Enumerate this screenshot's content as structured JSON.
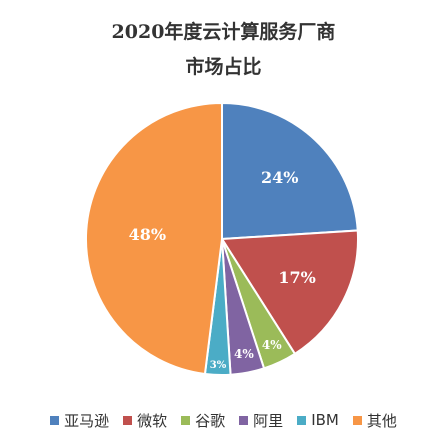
{
  "chart_data": {
    "type": "pie",
    "title_lines": [
      "2020年度云计算服务厂商",
      "市场占比"
    ],
    "categories": [
      "亚马逊",
      "微软",
      "谷歌",
      "阿里",
      "IBM",
      "其他"
    ],
    "values": [
      24,
      17,
      4,
      4,
      3,
      48
    ],
    "labels": [
      "24%",
      "17%",
      "4%",
      "4%",
      "3%",
      "48%"
    ],
    "colors": [
      "#4f81bd",
      "#c0504d",
      "#9bbb59",
      "#8064a2",
      "#4bacc6",
      "#f79646"
    ],
    "legend": "bottom",
    "start": "12 o'clock",
    "direction": "clockwise"
  }
}
